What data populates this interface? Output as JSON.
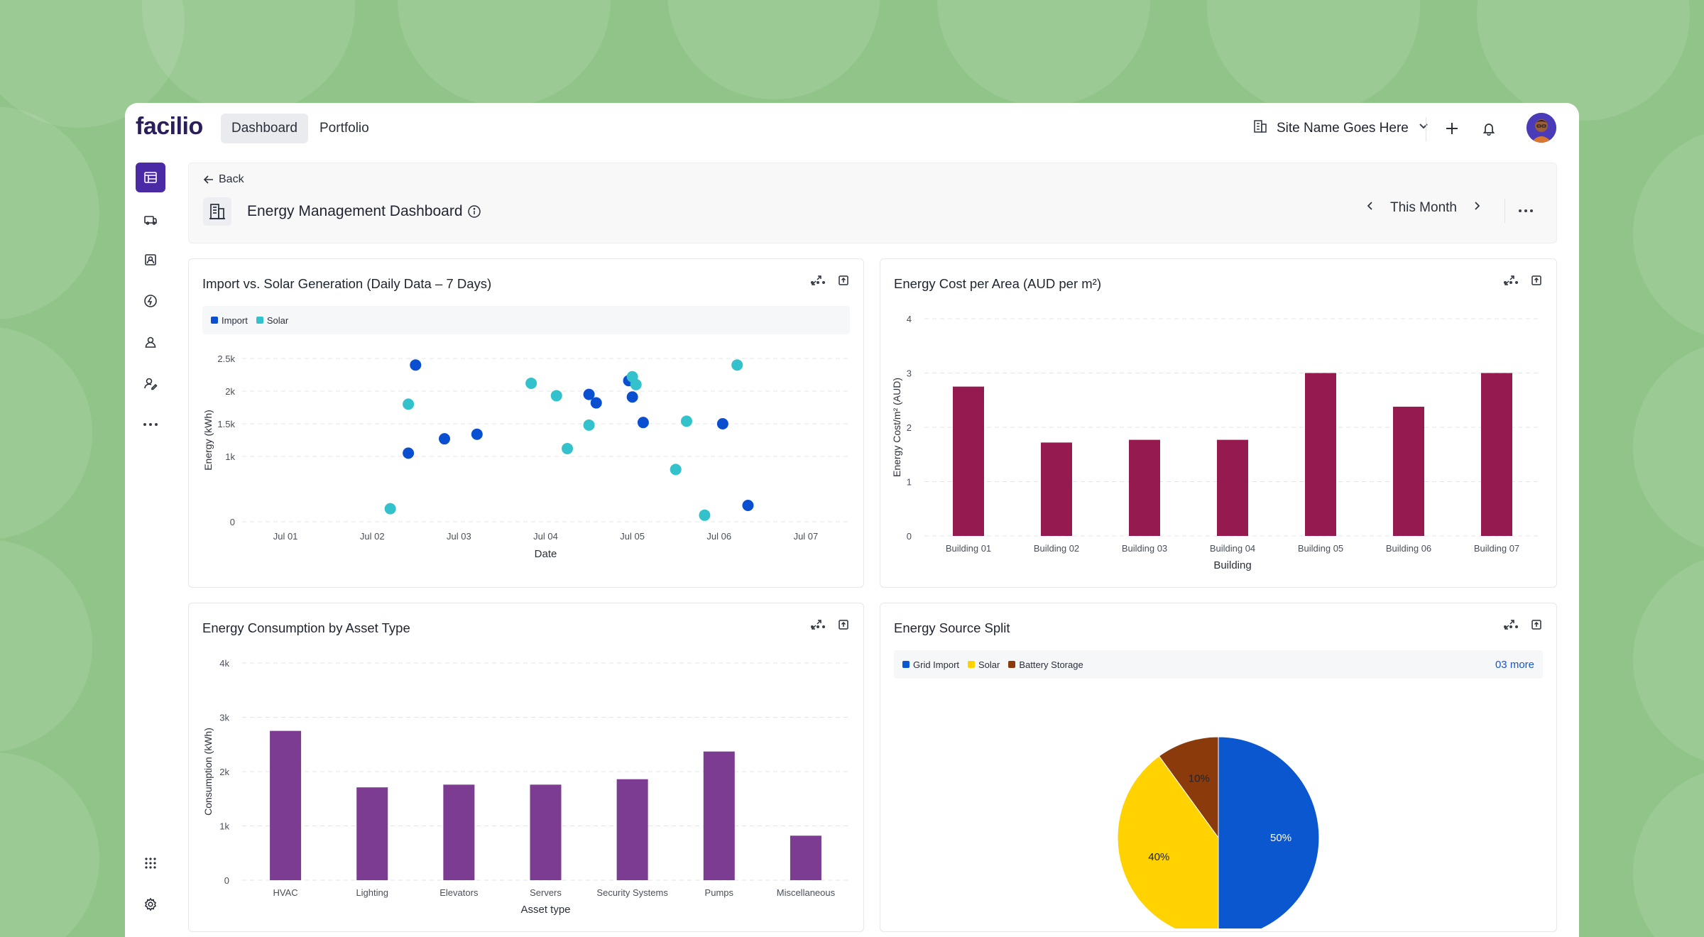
{
  "app": {
    "logo": "facilio",
    "nav_tabs": [
      {
        "label": "Dashboard",
        "active": true
      },
      {
        "label": "Portfolio",
        "active": false
      }
    ],
    "site_name": "Site Name Goes Here"
  },
  "sidebar": {
    "items": [
      {
        "icon": "dashboard-icon",
        "active": true
      },
      {
        "icon": "assets-icon"
      },
      {
        "icon": "contacts-icon"
      },
      {
        "icon": "energy-icon"
      },
      {
        "icon": "people-icon"
      },
      {
        "icon": "user-edit-icon"
      },
      {
        "icon": "more-icon"
      }
    ],
    "bottom": [
      {
        "icon": "apps-grid-icon"
      },
      {
        "icon": "settings-icon"
      }
    ]
  },
  "header": {
    "back_label": "Back",
    "title": "Energy Management Dashboard",
    "period": "This Month"
  },
  "colors": {
    "brand": "#4b2aa5",
    "import": "#0b4fd1",
    "solar": "#33c2cc",
    "cost_bar": "#951a4f",
    "asset_bar": "#7b3c92",
    "pie_grid": "#0b57d0",
    "pie_solar": "#ffd200",
    "pie_battery": "#8b3a0c"
  },
  "widgets": {
    "scatter": {
      "title": "Import vs. Solar Generation (Daily Data – 7 Days)",
      "legend": [
        {
          "name": "Import",
          "color": "#0b4fd1"
        },
        {
          "name": "Solar",
          "color": "#33c2cc"
        }
      ]
    },
    "cost": {
      "title": "Energy Cost per Area (AUD per m²)"
    },
    "asset": {
      "title": "Energy Consumption by Asset Type"
    },
    "source": {
      "title": "Energy Source Split",
      "legend": [
        {
          "name": "Grid Import",
          "color": "#0b57d0"
        },
        {
          "name": "Solar",
          "color": "#ffd200"
        },
        {
          "name": "Battery Storage",
          "color": "#8b3a0c"
        }
      ],
      "more_label": "03 more"
    }
  },
  "chart_data": [
    {
      "type": "scatter",
      "title": "Import vs. Solar Generation (Daily Data – 7 Days)",
      "xlabel": "Date",
      "ylabel": "Energy (kWh)",
      "x_ticks": [
        "Jul 01",
        "Jul 02",
        "Jul 03",
        "Jul 04",
        "Jul 05",
        "Jul 06",
        "Jul 07"
      ],
      "y_ticks": [
        "0",
        "1k",
        "1.5k",
        "2k",
        "2.5k"
      ],
      "ylim": [
        0,
        2500
      ],
      "xlim": [
        "Jul 01 00:00",
        "Jul 08 00:00"
      ],
      "grid": true,
      "legend_position": "top-left",
      "series": [
        {
          "name": "Import",
          "points": [
            {
              "x": "Jul 02 22:00",
              "y": 1050
            },
            {
              "x": "Jul 03 00:00",
              "y": 2400
            },
            {
              "x": "Jul 03 08:00",
              "y": 1270
            },
            {
              "x": "Jul 03 17:00",
              "y": 1340
            },
            {
              "x": "Jul 05 00:00",
              "y": 1950
            },
            {
              "x": "Jul 05 02:00",
              "y": 1820
            },
            {
              "x": "Jul 05 11:00",
              "y": 2160
            },
            {
              "x": "Jul 05 12:00",
              "y": 1910
            },
            {
              "x": "Jul 05 15:00",
              "y": 1520
            },
            {
              "x": "Jul 06 13:00",
              "y": 1500
            },
            {
              "x": "Jul 06 20:00",
              "y": 250
            }
          ]
        },
        {
          "name": "Solar",
          "points": [
            {
              "x": "Jul 02 17:00",
              "y": 200
            },
            {
              "x": "Jul 02 22:00",
              "y": 1800
            },
            {
              "x": "Jul 04 08:00",
              "y": 2120
            },
            {
              "x": "Jul 04 15:00",
              "y": 1930
            },
            {
              "x": "Jul 04 18:00",
              "y": 1120
            },
            {
              "x": "Jul 05 00:00",
              "y": 1480
            },
            {
              "x": "Jul 05 12:00",
              "y": 2220
            },
            {
              "x": "Jul 05 13:00",
              "y": 2100
            },
            {
              "x": "Jul 06 00:00",
              "y": 800
            },
            {
              "x": "Jul 06 03:00",
              "y": 1540
            },
            {
              "x": "Jul 06 08:00",
              "y": 100
            },
            {
              "x": "Jul 06 17:00",
              "y": 2400
            }
          ]
        }
      ]
    },
    {
      "type": "bar",
      "title": "Energy Cost per Area (AUD per m²)",
      "xlabel": "Building",
      "ylabel": "Energy Cost/m² (AUD)",
      "categories": [
        "Building 01",
        "Building 02",
        "Building 03",
        "Building 04",
        "Building 05",
        "Building 06",
        "Building 07"
      ],
      "values": [
        2.75,
        1.72,
        1.77,
        1.77,
        3.0,
        2.38,
        3.0
      ],
      "y_ticks": [
        "0",
        "1",
        "2",
        "3",
        "4"
      ],
      "ylim": [
        0,
        4
      ],
      "grid": true
    },
    {
      "type": "bar",
      "title": "Energy Consumption by Asset Type",
      "xlabel": "Asset type",
      "ylabel": "Consumption (kWh)",
      "categories": [
        "HVAC",
        "Lighting",
        "Elevators",
        "Servers",
        "Security Systems",
        "Pumps",
        "Miscellaneous"
      ],
      "values": [
        2750,
        1710,
        1760,
        1760,
        1860,
        2370,
        820
      ],
      "y_ticks": [
        "0",
        "1k",
        "2k",
        "3k",
        "4k"
      ],
      "ylim": [
        0,
        4000
      ],
      "grid": true
    },
    {
      "type": "pie",
      "title": "Energy Source Split",
      "categories": [
        "Grid Import",
        "Solar",
        "Battery Storage"
      ],
      "values": [
        50,
        40,
        10
      ],
      "labels": [
        "50%",
        "40%",
        "10%"
      ],
      "legend_position": "top"
    }
  ]
}
